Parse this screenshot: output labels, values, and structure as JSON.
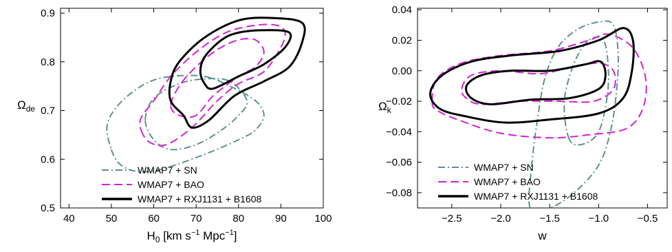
{
  "chart_data": [
    {
      "type": "contour",
      "title": "",
      "xlabel": "H",
      "xlabel_sub": "0",
      "xlabel_unit_prefix": " [km s",
      "xlabel_unit_sup1": "−1",
      "xlabel_unit_mid": " Mpc",
      "xlabel_unit_sup2": "−1",
      "xlabel_unit_suffix": "]",
      "ylabel": "Ω",
      "ylabel_sub": "de",
      "xlim": [
        38,
        100
      ],
      "ylim": [
        0.5,
        0.91
      ],
      "xticks": [
        40,
        50,
        60,
        70,
        80,
        90,
        100
      ],
      "yticks": [
        0.5,
        0.6,
        0.7,
        0.8,
        0.9
      ],
      "legend_position": "bottom-right",
      "series": [
        {
          "name": "WMAP7 + SN",
          "style": "dashdot",
          "color": "#5f8f8f",
          "contours": [
            [
              [
                50,
                0.62
              ],
              [
                52,
                0.59
              ],
              [
                56,
                0.575
              ],
              [
                62,
                0.58
              ],
              [
                72,
                0.61
              ],
              [
                80,
                0.64
              ],
              [
                84,
                0.66
              ],
              [
                86,
                0.69
              ],
              [
                84,
                0.72
              ],
              [
                78,
                0.75
              ],
              [
                72,
                0.77
              ],
              [
                64,
                0.77
              ],
              [
                58,
                0.755
              ],
              [
                52,
                0.715
              ],
              [
                49,
                0.67
              ]
            ],
            [
              [
                58,
                0.68
              ],
              [
                60,
                0.64
              ],
              [
                64,
                0.62
              ],
              [
                70,
                0.63
              ],
              [
                76,
                0.66
              ],
              [
                80,
                0.69
              ],
              [
                82,
                0.72
              ],
              [
                78,
                0.76
              ],
              [
                72,
                0.765
              ],
              [
                66,
                0.755
              ],
              [
                60,
                0.725
              ]
            ]
          ]
        },
        {
          "name": "WMAP7 + BAO",
          "style": "dashed",
          "color": "#d421d4",
          "contours": [
            [
              [
                57,
                0.66
              ],
              [
                59,
                0.635
              ],
              [
                63,
                0.63
              ],
              [
                69,
                0.665
              ],
              [
                75,
                0.72
              ],
              [
                80,
                0.755
              ],
              [
                86,
                0.78
              ],
              [
                90,
                0.83
              ],
              [
                91,
                0.86
              ],
              [
                89,
                0.875
              ],
              [
                84,
                0.875
              ],
              [
                77,
                0.86
              ],
              [
                70,
                0.82
              ],
              [
                64,
                0.77
              ],
              [
                60,
                0.72
              ],
              [
                57,
                0.685
              ]
            ],
            [
              [
                64,
                0.71
              ],
              [
                66,
                0.69
              ],
              [
                70,
                0.69
              ],
              [
                74,
                0.73
              ],
              [
                80,
                0.77
              ],
              [
                84,
                0.79
              ],
              [
                86,
                0.82
              ],
              [
                84,
                0.845
              ],
              [
                80,
                0.845
              ],
              [
                75,
                0.825
              ],
              [
                70,
                0.79
              ],
              [
                66,
                0.75
              ]
            ]
          ]
        },
        {
          "name": "WMAP7 + RXJ1131 + B1608",
          "style": "solid",
          "color": "#000000",
          "contours": [
            [
              [
                67,
                0.69
              ],
              [
                69,
                0.665
              ],
              [
                73,
                0.68
              ],
              [
                79,
                0.73
              ],
              [
                86,
                0.76
              ],
              [
                92,
                0.79
              ],
              [
                95,
                0.84
              ],
              [
                95,
                0.88
              ],
              [
                88,
                0.89
              ],
              [
                80,
                0.885
              ],
              [
                72,
                0.85
              ],
              [
                66,
                0.8
              ],
              [
                64,
                0.76
              ],
              [
                64,
                0.72
              ]
            ],
            [
              [
                72,
                0.755
              ],
              [
                74,
                0.745
              ],
              [
                80,
                0.77
              ],
              [
                86,
                0.795
              ],
              [
                91,
                0.83
              ],
              [
                92,
                0.86
              ],
              [
                86,
                0.865
              ],
              [
                80,
                0.86
              ],
              [
                76,
                0.845
              ],
              [
                72,
                0.81
              ],
              [
                71,
                0.78
              ]
            ]
          ]
        }
      ]
    },
    {
      "type": "contour",
      "title": "",
      "xlabel": "w",
      "ylabel": "Ω",
      "ylabel_sub": "k",
      "xlim": [
        -2.85,
        -0.3
      ],
      "ylim": [
        -0.09,
        0.041
      ],
      "xticks": [
        -2.5,
        -2.0,
        -1.5,
        -1.0,
        -0.5
      ],
      "xtick_labels": [
        "−2.5",
        "−2.0",
        "−1.5",
        "−1.0",
        "−0.5"
      ],
      "yticks": [
        -0.08,
        -0.06,
        -0.04,
        -0.02,
        0.0,
        0.02,
        0.04
      ],
      "ytick_labels": [
        "−0.08",
        "−0.06",
        "−0.04",
        "−0.02",
        "0.00",
        "0.02",
        "0.04"
      ],
      "legend_position": "bottom-left",
      "series": [
        {
          "name": "WMAP7 + SN",
          "style": "dashdot",
          "color": "#5f8f8f",
          "contours": [
            [
              [
                -1.7,
                -0.09
              ],
              [
                -1.68,
                -0.06
              ],
              [
                -1.62,
                -0.03
              ],
              [
                -1.55,
                -0.005
              ],
              [
                -1.42,
                0.015
              ],
              [
                -1.22,
                0.027
              ],
              [
                -1.0,
                0.032
              ],
              [
                -0.85,
                0.03
              ],
              [
                -0.8,
                0.01
              ],
              [
                -0.82,
                -0.015
              ],
              [
                -0.88,
                -0.04
              ],
              [
                -1.0,
                -0.062
              ],
              [
                -1.25,
                -0.08
              ],
              [
                -1.5,
                -0.09
              ]
            ],
            [
              [
                -1.3,
                -0.045
              ],
              [
                -1.35,
                -0.02
              ],
              [
                -1.25,
                0.005
              ],
              [
                -1.1,
                0.02
              ],
              [
                -0.95,
                0.02
              ],
              [
                -0.9,
                0.0
              ],
              [
                -0.92,
                -0.02
              ],
              [
                -1.0,
                -0.04
              ],
              [
                -1.15,
                -0.048
              ]
            ]
          ]
        },
        {
          "name": "WMAP7 + BAO",
          "style": "dashed",
          "color": "#d421d4",
          "contours": [
            [
              [
                -2.7,
                -0.02
              ],
              [
                -2.65,
                -0.005
              ],
              [
                -2.4,
                0.005
              ],
              [
                -2.0,
                0.01
              ],
              [
                -1.5,
                0.013
              ],
              [
                -1.1,
                0.02
              ],
              [
                -0.9,
                0.024
              ],
              [
                -0.65,
                0.015
              ],
              [
                -0.52,
                -0.005
              ],
              [
                -0.55,
                -0.025
              ],
              [
                -0.72,
                -0.038
              ],
              [
                -1.1,
                -0.042
              ],
              [
                -1.5,
                -0.044
              ],
              [
                -2.0,
                -0.041
              ],
              [
                -2.4,
                -0.033
              ],
              [
                -2.65,
                -0.026
              ]
            ],
            [
              [
                -2.4,
                -0.012
              ],
              [
                -2.3,
                -0.003
              ],
              [
                -2.0,
                0.0
              ],
              [
                -1.6,
                -0.002
              ],
              [
                -1.3,
                0.002
              ],
              [
                -1.0,
                0.005
              ],
              [
                -0.85,
                0.0
              ],
              [
                -0.85,
                -0.012
              ],
              [
                -1.05,
                -0.02
              ],
              [
                -1.4,
                -0.02
              ],
              [
                -1.8,
                -0.02
              ],
              [
                -2.2,
                -0.022
              ],
              [
                -2.35,
                -0.018
              ]
            ]
          ]
        },
        {
          "name": "WMAP7 + RXJ1131 + B1608",
          "style": "solid",
          "color": "#000000",
          "contours": [
            [
              [
                -2.72,
                -0.015
              ],
              [
                -2.6,
                -0.003
              ],
              [
                -2.3,
                0.006
              ],
              [
                -1.9,
                0.01
              ],
              [
                -1.4,
                0.013
              ],
              [
                -1.0,
                0.02
              ],
              [
                -0.75,
                0.028
              ],
              [
                -0.65,
                0.02
              ],
              [
                -0.66,
                0.0
              ],
              [
                -0.75,
                -0.018
              ],
              [
                -1.0,
                -0.028
              ],
              [
                -1.5,
                -0.032
              ],
              [
                -1.95,
                -0.034
              ],
              [
                -2.35,
                -0.03
              ],
              [
                -2.62,
                -0.025
              ]
            ],
            [
              [
                -2.35,
                -0.01
              ],
              [
                -2.2,
                -0.003
              ],
              [
                -1.9,
                0.0
              ],
              [
                -1.5,
                0.0
              ],
              [
                -1.15,
                0.004
              ],
              [
                -0.98,
                0.006
              ],
              [
                -0.93,
                -0.003
              ],
              [
                -1.0,
                -0.012
              ],
              [
                -1.3,
                -0.018
              ],
              [
                -1.7,
                -0.019
              ],
              [
                -2.1,
                -0.022
              ],
              [
                -2.3,
                -0.018
              ]
            ]
          ]
        }
      ]
    }
  ]
}
